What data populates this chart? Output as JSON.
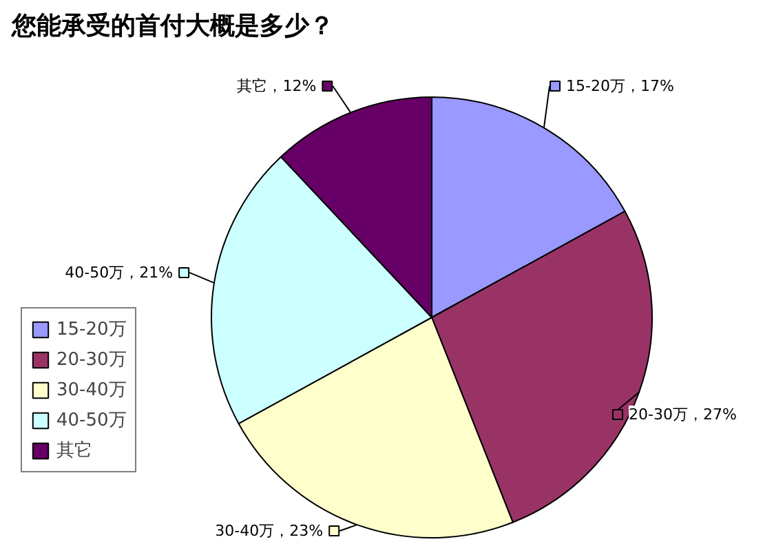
{
  "chart_data": {
    "type": "pie",
    "title": "您能承受的首付大概是多少？",
    "categories": [
      "15-20万",
      "20-30万",
      "30-40万",
      "40-50万",
      "其它"
    ],
    "values": [
      17,
      27,
      23,
      21,
      12
    ],
    "colors": [
      "#9999ff",
      "#993366",
      "#ffffcc",
      "#ccffff",
      "#660066"
    ],
    "value_labels": [
      "15-20万，17%",
      "20-30万，27%",
      "30-40万，23%",
      "40-50万，21%",
      "其它，12%"
    ],
    "legend": "left"
  }
}
